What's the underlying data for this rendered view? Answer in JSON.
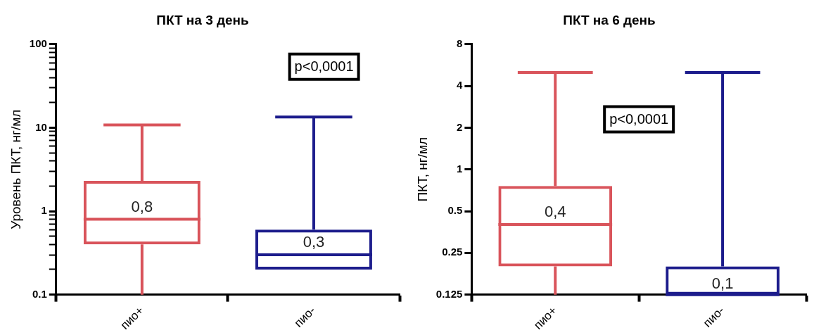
{
  "chart_data": [
    {
      "type": "box",
      "title": "ПКТ на 3 день",
      "ylabel": "Уровень ПКТ, нг/мл",
      "categories": [
        "пио+",
        "пио-"
      ],
      "colors": [
        "#d9545b",
        "#1c1c8c"
      ],
      "boxes": [
        {
          "low": 0.1,
          "q1": 0.4,
          "median": 0.8,
          "q3": 2.3,
          "high": 10.8
        },
        {
          "low": 0.2,
          "q1": 0.2,
          "median": 0.3,
          "q3": 0.6,
          "high": 13.4
        }
      ],
      "log": "y",
      "ylim": [
        0.1,
        100
      ],
      "yticks": [
        0.1,
        {
          "value": 0.2,
          "label": null
        },
        {
          "value": 0.3,
          "label": null
        },
        {
          "value": 0.4,
          "label": null
        },
        {
          "value": 0.5,
          "label": null
        },
        {
          "value": 0.6,
          "label": null
        },
        {
          "value": 0.7,
          "label": null
        },
        {
          "value": 0.8,
          "label": null
        },
        {
          "value": 0.9,
          "label": null
        },
        1,
        {
          "value": 2,
          "label": null
        },
        {
          "value": 3,
          "label": null
        },
        {
          "value": 4,
          "label": null
        },
        {
          "value": 5,
          "label": null
        },
        {
          "value": 6,
          "label": null
        },
        {
          "value": 7,
          "label": null
        },
        {
          "value": 8,
          "label": null
        },
        {
          "value": 9,
          "label": null
        },
        10,
        {
          "value": 20,
          "label": null
        },
        {
          "value": 30,
          "label": null
        },
        {
          "value": 40,
          "label": null
        },
        {
          "value": 50,
          "label": null
        },
        {
          "value": 60,
          "label": null
        },
        {
          "value": 70,
          "label": null
        },
        {
          "value": 80,
          "label": null
        },
        {
          "value": 90,
          "label": null
        },
        100
      ],
      "annotations": [
        "p<0,0001",
        {
          "text": "0,8",
          "x": "пио+",
          "y": 0.8
        },
        {
          "text": "0,3",
          "x": "пио-",
          "y": 0.3
        }
      ]
    },
    {
      "type": "box",
      "title": "ПКТ на 6 день",
      "ylabel": "ПКТ, нг/мл",
      "categories": [
        "пио+",
        "пио-"
      ],
      "colors": [
        "#d9545b",
        "#1c1c8c"
      ],
      "boxes": [
        {
          "low": 0.125,
          "q1": 0.2,
          "median": 0.4,
          "q3": 0.76,
          "high": 5.0
        },
        {
          "low": 0.125,
          "q1": 0.125,
          "median": 0.125,
          "q3": 0.2,
          "high": 5.0
        }
      ],
      "log": "y",
      "ylim": [
        0.125,
        8
      ],
      "yticks": [
        0.125,
        0.25,
        0.5,
        1,
        2,
        4,
        8
      ],
      "annotations": [
        "p<0,0001",
        {
          "text": "0,4",
          "x": "пио+",
          "y": 0.4
        },
        {
          "text": "0,1",
          "x": "пио-"
        }
      ]
    }
  ]
}
